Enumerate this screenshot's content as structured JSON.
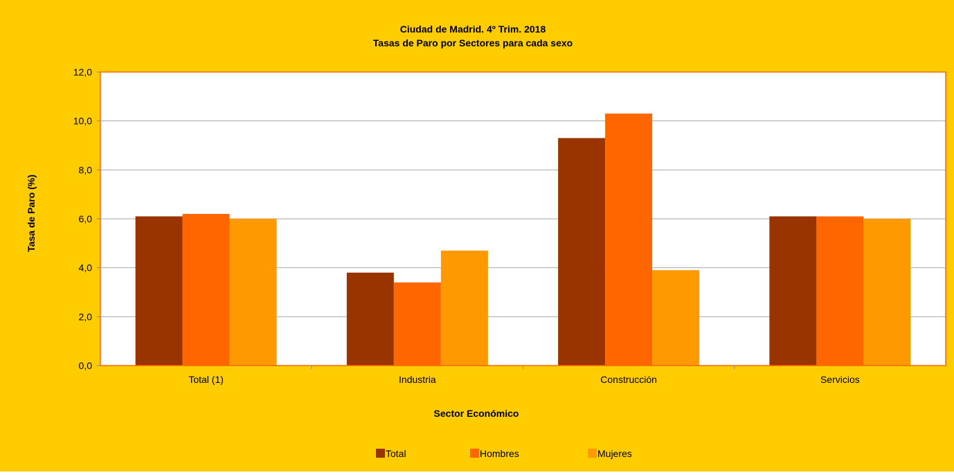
{
  "chart_data": {
    "type": "bar",
    "title": "Ciudad de Madrid. 4º Trim. 2018",
    "subtitle": "Tasas de Paro por Sectores para cada sexo",
    "xlabel": "Sector Económico",
    "ylabel": "Tasa de Paro (%)",
    "categories": [
      "Total (1)",
      "Industria",
      "Construcción",
      "Servicios"
    ],
    "ylim": [
      0,
      12
    ],
    "yticks": [
      "0,0",
      "2,0",
      "4,0",
      "6,0",
      "8,0",
      "10,0",
      "12,0"
    ],
    "grid": true,
    "legend_position": "bottom",
    "series": [
      {
        "name": "Total",
        "color": "#993300",
        "values": [
          6.1,
          3.8,
          9.3,
          6.1
        ]
      },
      {
        "name": "Hombres",
        "color": "#FF6600",
        "values": [
          6.2,
          3.4,
          10.3,
          6.1
        ]
      },
      {
        "name": "Mujeres",
        "color": "#FF9900",
        "values": [
          6.0,
          4.7,
          3.9,
          6.0
        ]
      }
    ],
    "colors": {
      "background": "#FFCC00",
      "plot_background": "#FFFFFF",
      "plot_border": "#FF6600",
      "gridline": "#A6A6A6"
    }
  }
}
